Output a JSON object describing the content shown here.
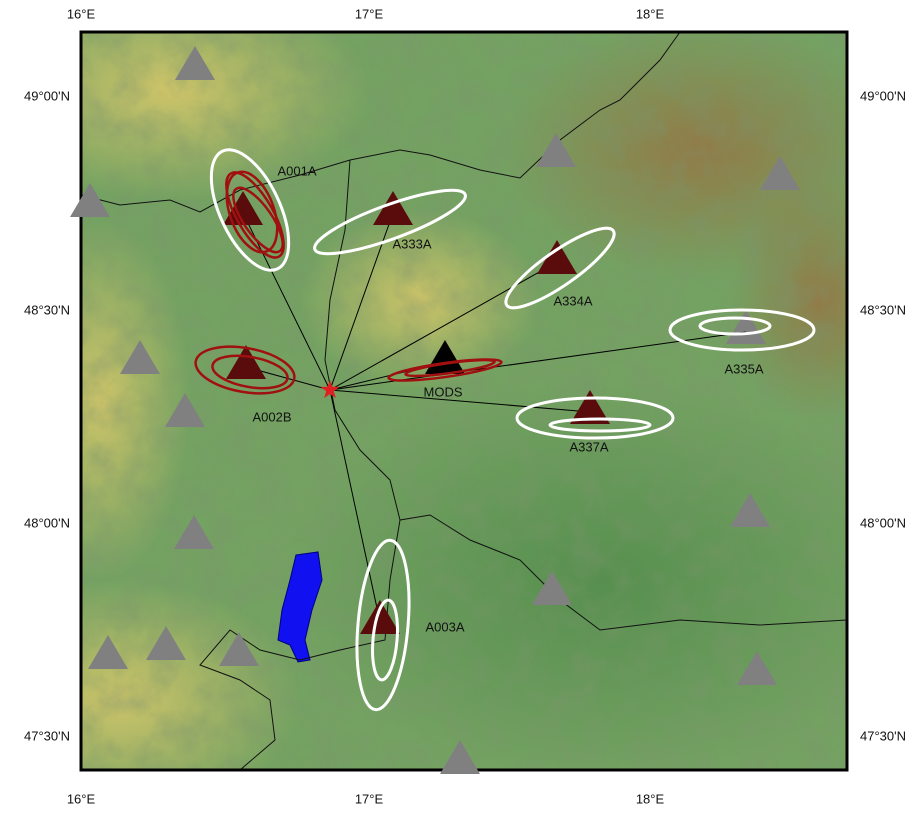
{
  "map": {
    "x_labels": [
      "16°E",
      "17°E",
      "18°E"
    ],
    "y_labels": [
      "49°00'N",
      "48°30'N",
      "48°00'N",
      "47°30'N"
    ],
    "stations": [
      {
        "label": "A001A"
      },
      {
        "label": "A333A"
      },
      {
        "label": "A334A"
      },
      {
        "label": "A335A"
      },
      {
        "label": "MODS"
      },
      {
        "label": "A337A"
      },
      {
        "label": "A002B"
      },
      {
        "label": "A003A"
      }
    ]
  }
}
